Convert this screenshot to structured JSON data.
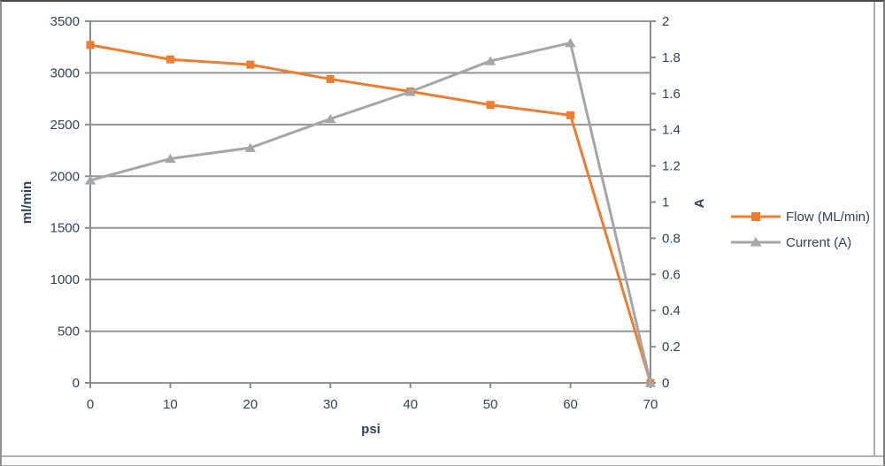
{
  "chart_data": {
    "type": "line",
    "x": [
      0,
      10,
      20,
      30,
      40,
      50,
      60,
      70
    ],
    "x_tick_labels": [
      "0",
      "10",
      "20",
      "30",
      "40",
      "50",
      "60",
      "70"
    ],
    "xlabel": "psi",
    "left_axis": {
      "title": "ml/min",
      "min": 0,
      "max": 3500,
      "step": 500,
      "tick_labels": [
        "0",
        "500",
        "1000",
        "1500",
        "2000",
        "2500",
        "3000",
        "3500"
      ]
    },
    "right_axis": {
      "title": "A",
      "min": 0,
      "max": 2,
      "step": 0.2,
      "tick_labels": [
        "0",
        "0.2",
        "0.4",
        "0.6",
        "0.8",
        "1",
        "1.2",
        "1.4",
        "1.6",
        "1.8",
        "2"
      ]
    },
    "grid": true,
    "legend_position": "right",
    "series": [
      {
        "name": "Flow (ML/min)",
        "axis": "left",
        "color": "#ED7D31",
        "marker": "square",
        "values": [
          3270,
          3130,
          3080,
          2940,
          2820,
          2690,
          2590,
          0
        ]
      },
      {
        "name": "Current (A)",
        "axis": "right",
        "color": "#A6A6A6",
        "marker": "triangle",
        "values": [
          1.12,
          1.24,
          1.3,
          1.46,
          1.61,
          1.78,
          1.88,
          0
        ]
      }
    ]
  },
  "colors": {
    "gridline": "#949494",
    "axis": "#8c8c8c",
    "tick": "#8c8c8c",
    "text": "#334257",
    "frame": "#b0b0b0",
    "background": "#ffffff"
  }
}
